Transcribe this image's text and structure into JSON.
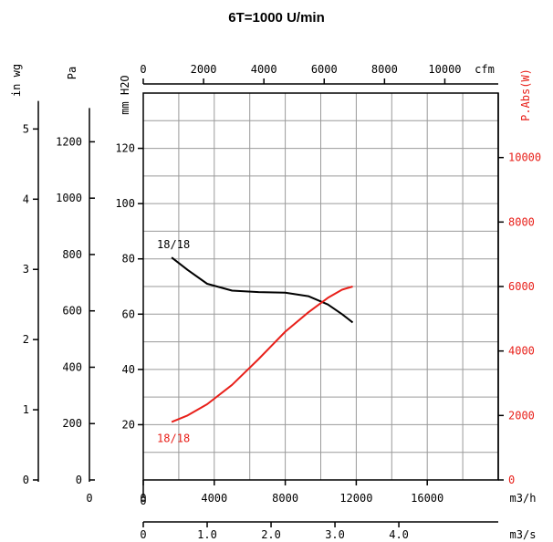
{
  "chart_data": {
    "type": "line",
    "title": "6T=1000 U/min",
    "x_axes": {
      "m3h": {
        "label": "m3/h",
        "ticks": [
          0,
          4000,
          8000,
          12000,
          16000
        ],
        "range": [
          0,
          20000
        ]
      },
      "cfm": {
        "label": "cfm",
        "ticks": [
          0,
          2000,
          4000,
          6000,
          8000,
          10000
        ]
      },
      "m3s": {
        "label": "m3/s",
        "ticks": [
          "0",
          "1.0",
          "2.0",
          "3.0",
          "4.0"
        ]
      }
    },
    "y_axes": {
      "mmh2o": {
        "label": "mm H2O",
        "ticks": [
          20,
          40,
          60,
          80,
          100,
          120
        ],
        "range": [
          0,
          140
        ]
      },
      "pa": {
        "label": "Pa",
        "ticks": [
          0,
          200,
          400,
          600,
          800,
          1000,
          1200
        ]
      },
      "inwg": {
        "label": "in wg",
        "ticks": [
          0,
          1,
          2,
          3,
          4,
          5
        ]
      },
      "power": {
        "label": "P.Abs(W)",
        "ticks": [
          0,
          2000,
          4000,
          6000,
          8000,
          10000
        ],
        "range": [
          0,
          12000
        ],
        "color": "#e8201a"
      }
    },
    "grid": true,
    "series": [
      {
        "name": "18/18",
        "axis": "mmh2o",
        "color": "#000000",
        "x": [
          1600,
          2500,
          3600,
          5000,
          6500,
          8000,
          9300,
          10400,
          11200,
          11800
        ],
        "y": [
          80.5,
          76,
          71,
          68.5,
          68,
          67.8,
          66.5,
          63.5,
          60,
          57
        ]
      },
      {
        "name": "18/18",
        "axis": "power",
        "color": "#e8201a",
        "x": [
          1600,
          2500,
          3600,
          5000,
          6500,
          8000,
          9300,
          10400,
          11200,
          11800
        ],
        "y": [
          1800,
          2000,
          2350,
          2950,
          3750,
          4600,
          5200,
          5650,
          5900,
          6000
        ]
      }
    ]
  }
}
